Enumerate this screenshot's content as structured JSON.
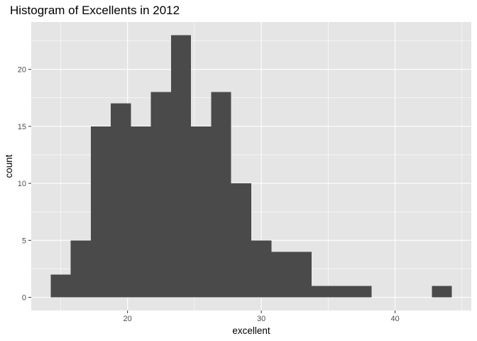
{
  "chart_data": {
    "type": "bar",
    "title": "Histogram of Excellents in 2012",
    "xlabel": "excellent",
    "ylabel": "count",
    "bin_width": 1.5,
    "bins": [
      {
        "start": 14.25,
        "end": 15.75,
        "count": 2
      },
      {
        "start": 15.75,
        "end": 17.25,
        "count": 5
      },
      {
        "start": 17.25,
        "end": 18.75,
        "count": 15
      },
      {
        "start": 18.75,
        "end": 20.25,
        "count": 17
      },
      {
        "start": 20.25,
        "end": 21.75,
        "count": 15
      },
      {
        "start": 21.75,
        "end": 23.25,
        "count": 18
      },
      {
        "start": 23.25,
        "end": 24.75,
        "count": 23
      },
      {
        "start": 24.75,
        "end": 26.25,
        "count": 15
      },
      {
        "start": 26.25,
        "end": 27.75,
        "count": 18
      },
      {
        "start": 27.75,
        "end": 29.25,
        "count": 10
      },
      {
        "start": 29.25,
        "end": 30.75,
        "count": 5
      },
      {
        "start": 30.75,
        "end": 32.25,
        "count": 4
      },
      {
        "start": 32.25,
        "end": 33.75,
        "count": 4
      },
      {
        "start": 33.75,
        "end": 35.25,
        "count": 1
      },
      {
        "start": 35.25,
        "end": 36.75,
        "count": 1
      },
      {
        "start": 36.75,
        "end": 38.25,
        "count": 1
      },
      {
        "start": 38.25,
        "end": 39.75,
        "count": 0
      },
      {
        "start": 39.75,
        "end": 41.25,
        "count": 0
      },
      {
        "start": 41.25,
        "end": 42.75,
        "count": 0
      },
      {
        "start": 42.75,
        "end": 44.25,
        "count": 1
      }
    ],
    "x_ticks": [
      20,
      30,
      40
    ],
    "y_ticks": [
      0,
      5,
      10,
      15,
      20
    ],
    "xlim": [
      12.8,
      45.7
    ],
    "ylim": [
      -1.15,
      24.15
    ],
    "grid": true,
    "colors": {
      "bar_fill": "#4a4a4a",
      "panel_background": "#e5e5e5",
      "grid_line": "#ffffff"
    }
  }
}
